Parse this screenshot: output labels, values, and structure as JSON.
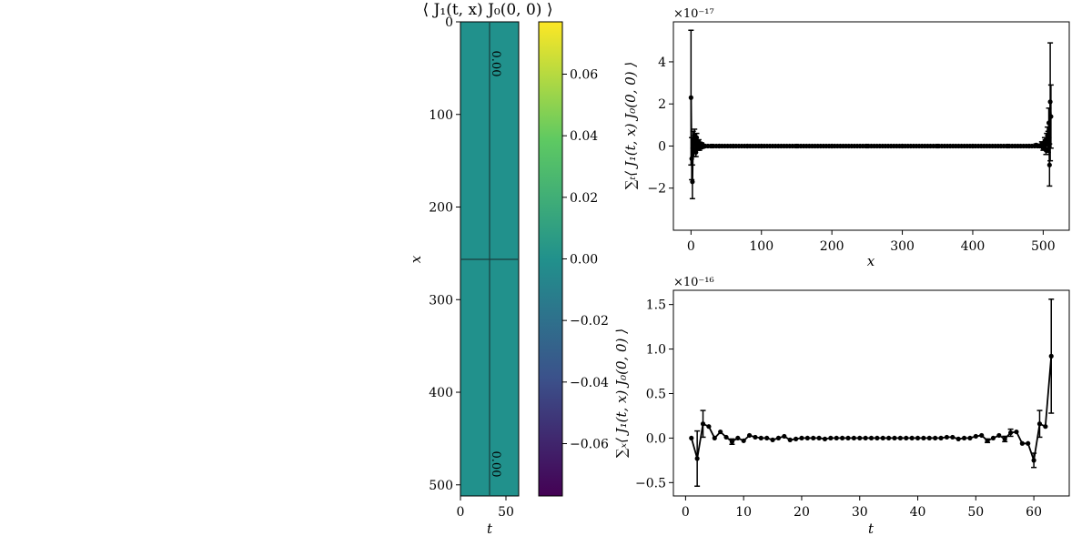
{
  "chart_data": [
    {
      "type": "heatmap",
      "title": "⟨ J₁(t, x) J₀(0, 0) ⟩",
      "xlabel": "t",
      "ylabel": "x",
      "xlim": [
        0,
        64
      ],
      "ylim": [
        512,
        0
      ],
      "xticks": [
        0,
        50
      ],
      "yticks": [
        0,
        100,
        200,
        300,
        400,
        500
      ],
      "fill_color": "#21918c",
      "contour_label": "0.00",
      "colorbar": {
        "range": [
          -0.077,
          0.077
        ],
        "ticks": [
          "−0.06",
          "−0.04",
          "−0.02",
          "0.00",
          "0.02",
          "0.04",
          "0.06"
        ],
        "tick_values": [
          -0.06,
          -0.04,
          -0.02,
          0.0,
          0.02,
          0.04,
          0.06
        ],
        "colormap": [
          "#440154",
          "#3b528b",
          "#21918c",
          "#5ec962",
          "#fde725"
        ]
      }
    },
    {
      "type": "line",
      "xlabel": "x",
      "ylabel": "∑ₜ⟨ J₁(t, x) J₀(0, 0) ⟩",
      "offset_label": "×10⁻¹⁷",
      "xlim": [
        -25,
        537
      ],
      "ylim": [
        -4.0,
        5.9
      ],
      "xticks": [
        0,
        100,
        200,
        300,
        400,
        500
      ],
      "yticks": [
        -2,
        0,
        2,
        4
      ],
      "ytick_labels": [
        "−2",
        "0",
        "2",
        "4"
      ],
      "series": [
        {
          "x": [
            0,
            1,
            2,
            3,
            4,
            5,
            6,
            7,
            8,
            9,
            10,
            11,
            12,
            13,
            14,
            15,
            16,
            17,
            18,
            19,
            20,
            30,
            40,
            60,
            80,
            100,
            150,
            200,
            250,
            300,
            350,
            400,
            450,
            480,
            490,
            495,
            498,
            500,
            502,
            503,
            504,
            505,
            506,
            507,
            508,
            509,
            510,
            511
          ],
          "y": [
            2.3,
            -0.6,
            -1.7,
            0.3,
            -0.2,
            0.5,
            0.2,
            -0.3,
            0.4,
            0.1,
            -0.1,
            0.2,
            -0.1,
            0.05,
            0.0,
            0.1,
            -0.05,
            0.0,
            0.02,
            0.0,
            0.0,
            0.0,
            0.0,
            0.0,
            0.0,
            0.0,
            0.0,
            0.0,
            0.0,
            0.0,
            0.0,
            0.0,
            0.0,
            0.0,
            0.05,
            0.0,
            0.1,
            -0.1,
            0.2,
            0.1,
            -0.2,
            0.3,
            0.5,
            0.2,
            1.1,
            -0.9,
            2.1,
            1.4
          ],
          "err": [
            3.2,
            1.0,
            0.8,
            0.4,
            0.3,
            0.3,
            0.2,
            0.2,
            0.2,
            0.1,
            0.1,
            0.1,
            0.1,
            0.05,
            0.05,
            0.05,
            0.05,
            0.02,
            0.02,
            0.02,
            0.02,
            0.01,
            0.01,
            0.01,
            0.01,
            0.01,
            0.01,
            0.01,
            0.01,
            0.01,
            0.01,
            0.01,
            0.01,
            0.01,
            0.05,
            0.05,
            0.1,
            0.1,
            0.2,
            0.2,
            0.2,
            0.3,
            0.4,
            0.5,
            0.7,
            1.0,
            2.8,
            1.5
          ]
        }
      ]
    },
    {
      "type": "line",
      "xlabel": "t",
      "ylabel": "∑ₓ⟨ J₁(t, x) J₀(0, 0) ⟩",
      "offset_label": "×10⁻¹⁶",
      "xlim": [
        -2.1,
        66.1
      ],
      "ylim": [
        -0.65,
        1.66
      ],
      "xticks": [
        0,
        10,
        20,
        30,
        40,
        50,
        60
      ],
      "yticks": [
        -0.5,
        0.0,
        0.5,
        1.0,
        1.5
      ],
      "ytick_labels": [
        "−0.5",
        "0.0",
        "0.5",
        "1.0",
        "1.5"
      ],
      "series": [
        {
          "x": [
            1,
            2,
            3,
            4,
            5,
            6,
            7,
            8,
            9,
            10,
            11,
            12,
            13,
            14,
            15,
            16,
            17,
            18,
            19,
            20,
            21,
            22,
            23,
            24,
            25,
            26,
            27,
            28,
            29,
            30,
            31,
            32,
            33,
            34,
            35,
            36,
            37,
            38,
            39,
            40,
            41,
            42,
            43,
            44,
            45,
            46,
            47,
            48,
            49,
            50,
            51,
            52,
            53,
            54,
            55,
            56,
            57,
            58,
            59,
            60,
            61,
            62,
            63
          ],
          "y": [
            0.0,
            -0.23,
            0.16,
            0.13,
            0.0,
            0.07,
            0.01,
            -0.04,
            0.0,
            -0.03,
            0.03,
            0.01,
            0.0,
            0.0,
            -0.02,
            0.0,
            0.02,
            -0.02,
            -0.01,
            0.0,
            0.0,
            0.0,
            0.0,
            -0.01,
            0.0,
            0.0,
            0.0,
            0.0,
            0.0,
            0.0,
            0.0,
            0.0,
            0.0,
            0.0,
            0.0,
            0.0,
            0.0,
            0.0,
            0.0,
            0.0,
            0.0,
            0.0,
            0.0,
            0.0,
            0.01,
            0.01,
            -0.01,
            0.0,
            0.0,
            0.02,
            0.03,
            -0.03,
            0.0,
            0.03,
            -0.01,
            0.06,
            0.07,
            -0.06,
            -0.06,
            -0.25,
            0.16,
            0.13,
            0.92
          ]
        }
      ],
      "err": [
        0.0,
        0.31,
        0.15,
        0.0,
        0.0,
        0.0,
        0.0,
        0.03,
        0.0,
        0.0,
        0.0,
        0.0,
        0.0,
        0.0,
        0.0,
        0.0,
        0.0,
        0.0,
        0.0,
        0.0,
        0.0,
        0.0,
        0.0,
        0.0,
        0.0,
        0.0,
        0.0,
        0.0,
        0.0,
        0.0,
        0.0,
        0.0,
        0.0,
        0.0,
        0.0,
        0.0,
        0.0,
        0.0,
        0.0,
        0.0,
        0.0,
        0.0,
        0.0,
        0.0,
        0.0,
        0.0,
        0.0,
        0.0,
        0.0,
        0.0,
        0.0,
        0.02,
        0.0,
        0.0,
        0.03,
        0.04,
        0.0,
        0.0,
        0.0,
        0.08,
        0.15,
        0.0,
        0.64
      ]
    }
  ]
}
